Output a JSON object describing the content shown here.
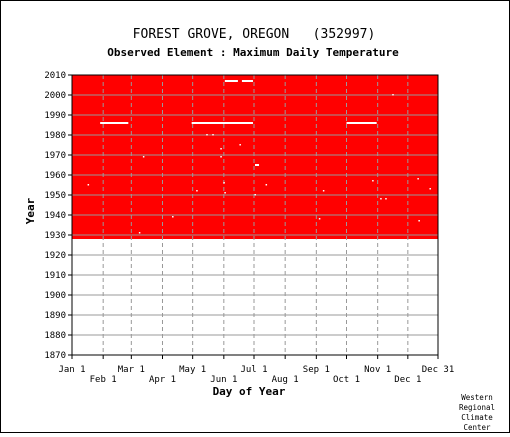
{
  "chart_data": {
    "type": "heatmap",
    "title": "FOREST GROVE, OREGON   (352997)",
    "subtitle": "Observed Element : Maximum Daily Temperature",
    "xlabel": "Day of Year",
    "ylabel": "Year",
    "x_ticks_upper": [
      "Jan 1",
      "Mar 1",
      "May 1",
      "Jul 1",
      "Sep 1",
      "Nov 1",
      "Dec 31"
    ],
    "x_ticks_lower": [
      "Feb 1",
      "Apr 1",
      "Jun 1",
      "Aug 1",
      "Oct 1",
      "Dec 1"
    ],
    "x_tick_days": [
      1,
      32,
      60,
      91,
      121,
      152,
      182,
      213,
      244,
      274,
      305,
      335,
      365
    ],
    "y_ticks": [
      "1870",
      "1880",
      "1890",
      "1900",
      "1910",
      "1920",
      "1930",
      "1940",
      "1950",
      "1960",
      "1970",
      "1980",
      "1990",
      "2000",
      "2010"
    ],
    "ylim": [
      1870,
      2010
    ],
    "xlim": [
      1,
      365
    ],
    "data_coverage": {
      "first_year": 1928,
      "last_year": 2010,
      "first_day": 1,
      "last_day": 365,
      "status": "observed"
    },
    "missing_segments": [
      {
        "year": 2007,
        "start_day": 153,
        "end_day": 166
      },
      {
        "year": 2007,
        "start_day": 170,
        "end_day": 181
      },
      {
        "year": 1986,
        "start_day": 29,
        "end_day": 57
      },
      {
        "year": 1986,
        "start_day": 120,
        "end_day": 181
      },
      {
        "year": 1986,
        "start_day": 274,
        "end_day": 304
      },
      {
        "year": 1965,
        "start_day": 183,
        "end_day": 187
      }
    ],
    "missing_points": [
      {
        "year": 2000,
        "day": 320
      },
      {
        "year": 1980,
        "day": 135
      },
      {
        "year": 1980,
        "day": 141
      },
      {
        "year": 1975,
        "day": 168
      },
      {
        "year": 1973,
        "day": 149
      },
      {
        "year": 1969,
        "day": 149
      },
      {
        "year": 1969,
        "day": 72
      },
      {
        "year": 1956,
        "day": 152
      },
      {
        "year": 1955,
        "day": 17
      },
      {
        "year": 1955,
        "day": 194
      },
      {
        "year": 1953,
        "day": 357
      },
      {
        "year": 1952,
        "day": 251
      },
      {
        "year": 1952,
        "day": 125
      },
      {
        "year": 1951,
        "day": 153
      },
      {
        "year": 1950,
        "day": 183
      },
      {
        "year": 1948,
        "day": 308
      },
      {
        "year": 1948,
        "day": 313
      },
      {
        "year": 1957,
        "day": 300
      },
      {
        "year": 1958,
        "day": 345
      },
      {
        "year": 1939,
        "day": 101
      },
      {
        "year": 1938,
        "day": 247
      },
      {
        "year": 1937,
        "day": 346
      },
      {
        "year": 1931,
        "day": 68
      }
    ],
    "grid": true,
    "colors": {
      "observed": "#ff0000",
      "missing": "#ffffff",
      "grid": "#999999",
      "background": "#ffffff"
    }
  },
  "credit": [
    "Western",
    "Regional",
    "Climate",
    "Center"
  ]
}
